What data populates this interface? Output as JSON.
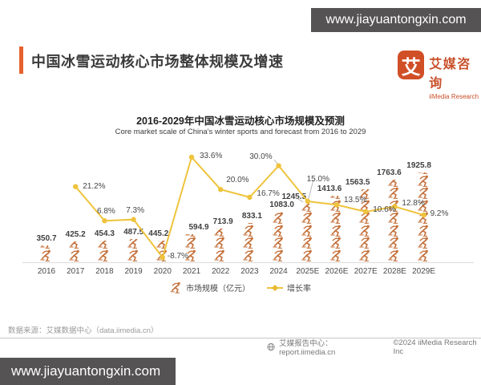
{
  "watermarks": {
    "top": "www.jiayuantongxin.com",
    "bottom": "www.jiayuantongxin.com"
  },
  "header": {
    "title": "中国冰雪运动核心市场整体规模及增速",
    "logo": {
      "glyph": "艾",
      "brand_cn": "艾媒咨询",
      "brand_en": "iiMedia Research"
    }
  },
  "chart": {
    "title": "2016-2029年中国冰雪运动核心市场规模及预测",
    "subtitle": "Core market scale of China's winter sports and forecast from 2016 to 2029",
    "legend": {
      "market": "市场规模（亿元）",
      "growth": "增长率"
    }
  },
  "chart_data": {
    "type": "bar",
    "subtype": "pictograph-bar with growth line",
    "title": "2016-2029年中国冰雪运动核心市场规模及预测",
    "categories": [
      "2016",
      "2017",
      "2018",
      "2019",
      "2020",
      "2021",
      "2022",
      "2023",
      "2024",
      "2025E",
      "2026E",
      "2027E",
      "2028E",
      "2029E"
    ],
    "series": [
      {
        "name": "市场规模（亿元）",
        "type": "pictograph-bar",
        "unit": "亿元",
        "values": [
          350.7,
          425.2,
          454.3,
          487.5,
          445.2,
          594.9,
          713.9,
          833.1,
          1083.0,
          1245.5,
          1413.6,
          1563.5,
          1763.6,
          1925.8
        ]
      },
      {
        "name": "增长率",
        "type": "line",
        "unit": "%",
        "values": [
          null,
          21.2,
          6.8,
          7.3,
          -8.7,
          33.6,
          20.0,
          16.7,
          30.0,
          15.0,
          13.5,
          10.6,
          12.8,
          9.2
        ]
      }
    ],
    "value_labels": [
      "350.7",
      "425.2",
      "454.3",
      "487.5",
      "445.2",
      "594.9",
      "713.9",
      "833.1",
      "1083.0",
      "1245.5",
      "1413.6",
      "1563.5",
      "1763.6",
      "1925.8"
    ],
    "growth_labels": [
      "",
      "21.2%",
      "6.8%",
      "7.3%",
      "-8.7%",
      "33.6%",
      "20.0%",
      "16.7%",
      "30.0%",
      "15.0%",
      "13.5%",
      "10.6%",
      "12.8%",
      "9.2%"
    ],
    "legend_position": "bottom",
    "grid": false,
    "ylim_growth_pct": [
      -8.7,
      33.6
    ]
  },
  "footer": {
    "source": "数据来源：艾媒数据中心（data.iimedia.cn）",
    "report_center": "艾媒报告中心：report.iimedia.cn",
    "copyright": "©2024  iiMedia Research  Inc"
  },
  "colors": {
    "accent": "#E7612E",
    "logo": "#D14F27",
    "icon": "#C5723C",
    "line": "#EFC33C",
    "watermark_bg": "#565354",
    "text_dark": "#3B3B3B"
  }
}
